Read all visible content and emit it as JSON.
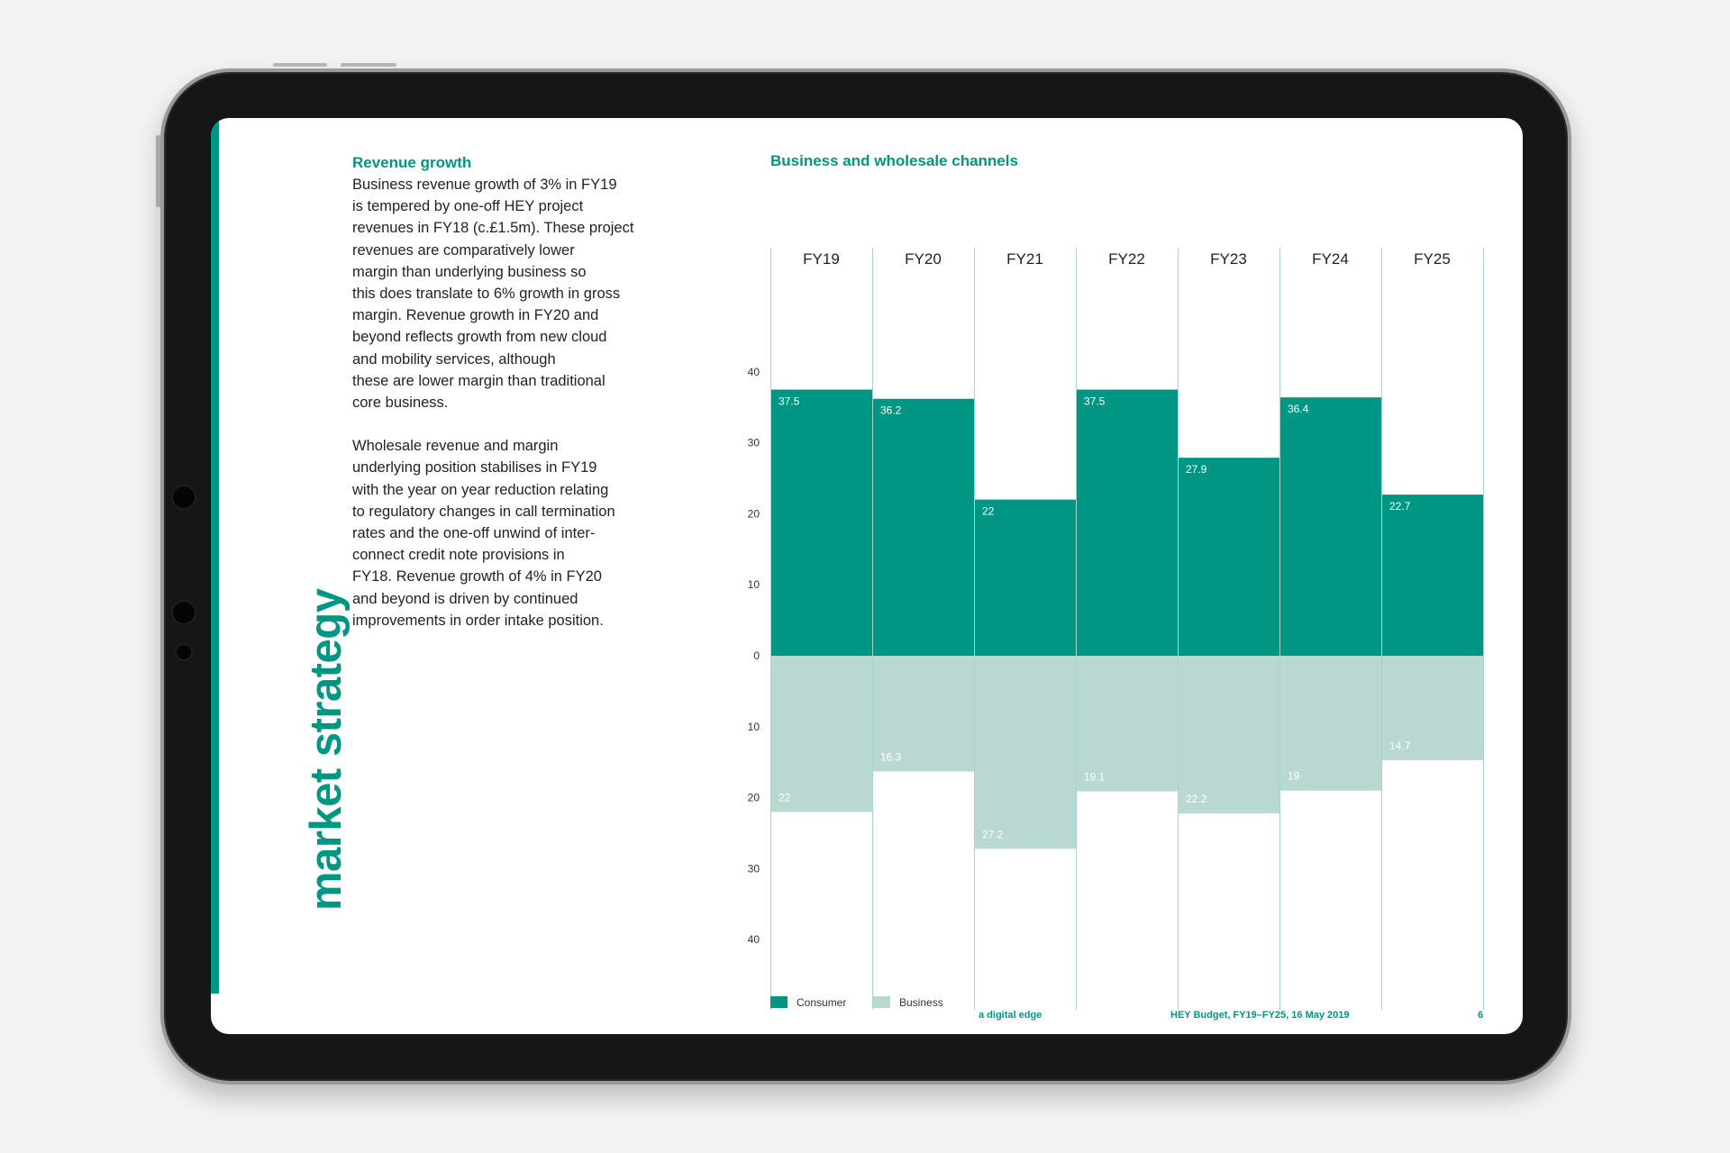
{
  "sidebar": {
    "title": "market strategy"
  },
  "text": {
    "heading": "Revenue growth",
    "paragraph1": "Business revenue growth of 3% in FY19\nis tempered by one-off HEY project\nrevenues in FY18 (c.£1.5m). These project\nrevenues are comparatively lower\nmargin than underlying business so\nthis does translate to 6% growth in gross\nmargin. Revenue growth in FY20 and\nbeyond reflects growth from new cloud\nand mobility services, although\nthese are lower margin than traditional\ncore business.",
    "paragraph2": "Wholesale revenue and margin\nunderlying position stabilises in FY19\nwith the year on year reduction relating\nto regulatory changes in call termination\nrates and the one-off unwind of inter-\nconnect credit note provisions in\nFY18. Revenue growth of 4% in FY20\nand beyond is driven by continued\nimprovements in order intake position."
  },
  "footer": {
    "tagline": "a digital edge",
    "doc": "HEY Budget, FY19–FY25, 16 May 2019",
    "page": "6"
  },
  "colors": {
    "consumer": "#009684",
    "business": "#bad8d2",
    "grid": "#a9d4cc",
    "brand": "#009684"
  },
  "chart_data": {
    "type": "bar",
    "title": "Business and wholesale channels",
    "categories": [
      "FY19",
      "FY20",
      "FY21",
      "FY22",
      "FY23",
      "FY24",
      "FY25"
    ],
    "series": [
      {
        "name": "Consumer",
        "direction": "up",
        "values": [
          37.5,
          36.2,
          22,
          37.5,
          27.9,
          36.4,
          22.7
        ]
      },
      {
        "name": "Business",
        "direction": "down",
        "values": [
          22,
          16.3,
          27.2,
          19.1,
          22.2,
          19,
          14.7
        ]
      }
    ],
    "data_labels": {
      "Consumer": [
        "37.5",
        "36.2",
        "22",
        "37.5",
        "27.9",
        "36.4",
        "22.7"
      ],
      "Business": [
        "22",
        "16.3",
        "27.2",
        "19.1",
        "22.2",
        "19",
        "14.7"
      ]
    },
    "y_ticks_up": [
      0,
      10,
      20,
      30,
      40
    ],
    "y_ticks_down": [
      10,
      20,
      30,
      40
    ],
    "ylim": [
      -50,
      50
    ],
    "legend": [
      "Consumer",
      "Business"
    ],
    "legend_position": "bottom-left"
  }
}
